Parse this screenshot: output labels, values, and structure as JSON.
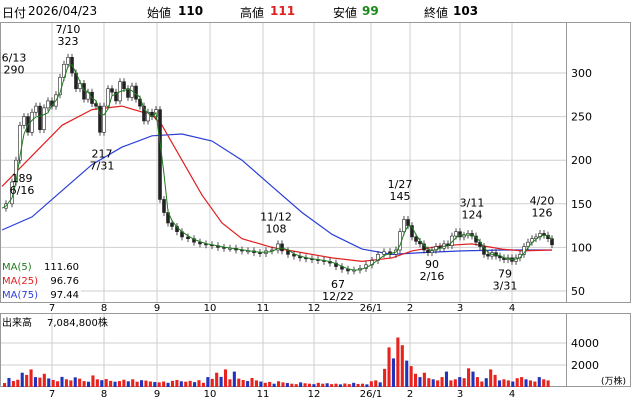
{
  "header": {
    "date_label": "日付",
    "date": "2026/04/23",
    "open_label": "始値",
    "open": "110",
    "high_label": "高値",
    "high": "111",
    "low_label": "安値",
    "low": "99",
    "close_label": "終値",
    "close": "103"
  },
  "legend": {
    "ma5_label": "MA(5)",
    "ma5_value": "111.60",
    "ma25_label": "MA(25)",
    "ma25_value": "96.76",
    "ma75_label": "MA(75)",
    "ma75_value": "97.44"
  },
  "volume_panel": {
    "label": "出来高",
    "value": "7,084,800株",
    "unit": "(万株)"
  },
  "colors": {
    "up": "#e8231d",
    "down": "#2233bb",
    "ma5": "#1f7a1f",
    "ma25": "#e02020",
    "ma75": "#2a3fd8",
    "high_text": "#e02020",
    "low_text": "#1a8a1a",
    "grid": "#cfcfcf"
  },
  "chart_data": {
    "type": "candlestick",
    "price_axis": {
      "ticks": [
        50,
        100,
        150,
        200,
        250,
        300
      ],
      "range": [
        35,
        345
      ]
    },
    "volume_axis": {
      "ticks": [
        2000,
        4000
      ],
      "range": [
        0,
        6000
      ]
    },
    "x_month_labels": [
      "7",
      "8",
      "9",
      "10",
      "11",
      "12",
      "26/1",
      "2",
      "3",
      "4"
    ],
    "annotations": [
      {
        "label": "6/13\n290",
        "date": "6/13",
        "value": 290,
        "kind": "high"
      },
      {
        "label": "7/10\n323",
        "date": "7/10",
        "value": 323,
        "kind": "high"
      },
      {
        "label": "189\n6/16",
        "date": "6/16",
        "value": 189,
        "kind": "low"
      },
      {
        "label": "217\n7/31",
        "date": "7/31",
        "value": 217,
        "kind": "low"
      },
      {
        "label": "11/12\n108",
        "date": "11/12",
        "value": 108,
        "kind": "high"
      },
      {
        "label": "67\n12/22",
        "date": "12/22",
        "value": 67,
        "kind": "low"
      },
      {
        "label": "1/27\n145",
        "date": "1/27",
        "value": 145,
        "kind": "high"
      },
      {
        "label": "90\n2/16",
        "date": "2/16",
        "value": 90,
        "kind": "low"
      },
      {
        "label": "3/11\n124",
        "date": "3/11",
        "value": 124,
        "kind": "high"
      },
      {
        "label": "79\n3/31",
        "date": "3/31",
        "value": 79,
        "kind": "low"
      },
      {
        "label": "4/20\n126",
        "date": "4/20",
        "value": 126,
        "kind": "high"
      }
    ],
    "price_path": [
      [
        0,
        145
      ],
      [
        4,
        150
      ],
      [
        10,
        175
      ],
      [
        14,
        200
      ],
      [
        18,
        240
      ],
      [
        22,
        250
      ],
      [
        26,
        232
      ],
      [
        30,
        255
      ],
      [
        34,
        262
      ],
      [
        38,
        235
      ],
      [
        42,
        260
      ],
      [
        46,
        268
      ],
      [
        50,
        262
      ],
      [
        54,
        275
      ],
      [
        58,
        295
      ],
      [
        62,
        310
      ],
      [
        66,
        318
      ],
      [
        70,
        300
      ],
      [
        74,
        282
      ],
      [
        78,
        288
      ],
      [
        82,
        270
      ],
      [
        86,
        278
      ],
      [
        90,
        265
      ],
      [
        94,
        262
      ],
      [
        98,
        232
      ],
      [
        102,
        262
      ],
      [
        106,
        282
      ],
      [
        110,
        278
      ],
      [
        114,
        268
      ],
      [
        118,
        290
      ],
      [
        122,
        282
      ],
      [
        126,
        272
      ],
      [
        130,
        285
      ],
      [
        134,
        270
      ],
      [
        138,
        262
      ],
      [
        142,
        245
      ],
      [
        146,
        255
      ],
      [
        150,
        250
      ],
      [
        154,
        258
      ],
      [
        158,
        155
      ],
      [
        162,
        140
      ],
      [
        166,
        128
      ],
      [
        170,
        124
      ],
      [
        175,
        118
      ],
      [
        180,
        112
      ],
      [
        186,
        110
      ],
      [
        192,
        106
      ],
      [
        198,
        104
      ],
      [
        204,
        103
      ],
      [
        210,
        102
      ],
      [
        216,
        100
      ],
      [
        222,
        99
      ],
      [
        228,
        99
      ],
      [
        234,
        97
      ],
      [
        240,
        96
      ],
      [
        246,
        96
      ],
      [
        252,
        94
      ],
      [
        258,
        93
      ],
      [
        264,
        96
      ],
      [
        270,
        97
      ],
      [
        276,
        104
      ],
      [
        280,
        96
      ],
      [
        286,
        92
      ],
      [
        292,
        90
      ],
      [
        298,
        88
      ],
      [
        304,
        87
      ],
      [
        310,
        86
      ],
      [
        316,
        85
      ],
      [
        322,
        84
      ],
      [
        328,
        82
      ],
      [
        334,
        78
      ],
      [
        340,
        75
      ],
      [
        346,
        73
      ],
      [
        352,
        74
      ],
      [
        358,
        76
      ],
      [
        364,
        80
      ],
      [
        370,
        85
      ],
      [
        376,
        92
      ],
      [
        382,
        95
      ],
      [
        388,
        92
      ],
      [
        394,
        97
      ],
      [
        398,
        118
      ],
      [
        402,
        132
      ],
      [
        406,
        125
      ],
      [
        410,
        112
      ],
      [
        414,
        107
      ],
      [
        418,
        104
      ],
      [
        422,
        97
      ],
      [
        426,
        94
      ],
      [
        430,
        97
      ],
      [
        434,
        101
      ],
      [
        438,
        99
      ],
      [
        442,
        104
      ],
      [
        446,
        102
      ],
      [
        450,
        113
      ],
      [
        454,
        118
      ],
      [
        458,
        112
      ],
      [
        462,
        114
      ],
      [
        466,
        116
      ],
      [
        470,
        113
      ],
      [
        474,
        106
      ],
      [
        478,
        101
      ],
      [
        482,
        92
      ],
      [
        486,
        90
      ],
      [
        490,
        94
      ],
      [
        494,
        90
      ],
      [
        498,
        88
      ],
      [
        502,
        86
      ],
      [
        506,
        88
      ],
      [
        510,
        84
      ],
      [
        514,
        88
      ],
      [
        518,
        92
      ],
      [
        522,
        101
      ],
      [
        526,
        106
      ],
      [
        530,
        110
      ],
      [
        534,
        112
      ],
      [
        538,
        116
      ],
      [
        542,
        114
      ],
      [
        546,
        110
      ],
      [
        550,
        103
      ]
    ],
    "ma25_path": [
      [
        0,
        170
      ],
      [
        30,
        205
      ],
      [
        60,
        240
      ],
      [
        90,
        258
      ],
      [
        120,
        262
      ],
      [
        150,
        252
      ],
      [
        160,
        240
      ],
      [
        180,
        200
      ],
      [
        200,
        160
      ],
      [
        220,
        128
      ],
      [
        240,
        110
      ],
      [
        270,
        100
      ],
      [
        300,
        94
      ],
      [
        330,
        88
      ],
      [
        360,
        84
      ],
      [
        390,
        88
      ],
      [
        410,
        96
      ],
      [
        440,
        102
      ],
      [
        470,
        104
      ],
      [
        500,
        98
      ],
      [
        520,
        96
      ],
      [
        550,
        97
      ]
    ],
    "ma75_path": [
      [
        0,
        120
      ],
      [
        30,
        135
      ],
      [
        60,
        165
      ],
      [
        90,
        195
      ],
      [
        120,
        215
      ],
      [
        150,
        228
      ],
      [
        180,
        230
      ],
      [
        210,
        222
      ],
      [
        240,
        200
      ],
      [
        270,
        170
      ],
      [
        300,
        140
      ],
      [
        330,
        115
      ],
      [
        360,
        98
      ],
      [
        390,
        92
      ],
      [
        420,
        94
      ],
      [
        460,
        96
      ],
      [
        500,
        97
      ],
      [
        550,
        97
      ]
    ],
    "volume_series": [
      360,
      820,
      540,
      660,
      1300,
      1100,
      1600,
      900,
      850,
      1200,
      780,
      640,
      520,
      920,
      700,
      600,
      880,
      760,
      540,
      480,
      1050,
      700,
      620,
      720,
      560,
      480,
      540,
      660,
      520,
      700,
      480,
      620,
      580,
      500,
      450,
      420,
      500,
      380,
      560,
      640,
      520,
      480,
      560,
      440,
      620,
      380,
      900,
      740,
      1300,
      920,
      1600,
      700,
      1400,
      760,
      640,
      540,
      820,
      600,
      500,
      380,
      460,
      300,
      520,
      420,
      360,
      300,
      260,
      420,
      340,
      300,
      260,
      380,
      300,
      340,
      260,
      300,
      240,
      320,
      260,
      380,
      280,
      300,
      240,
      520,
      600,
      420,
      1650,
      3600,
      2600,
      4500,
      3800,
      2400,
      1900,
      1200,
      900,
      1300,
      800,
      700,
      600,
      900,
      1400,
      600,
      700,
      900,
      800,
      1700,
      1400,
      900,
      500,
      800,
      1600,
      1100,
      600,
      700,
      600,
      500,
      800,
      900,
      700,
      600,
      500,
      900,
      700,
      600
    ]
  }
}
